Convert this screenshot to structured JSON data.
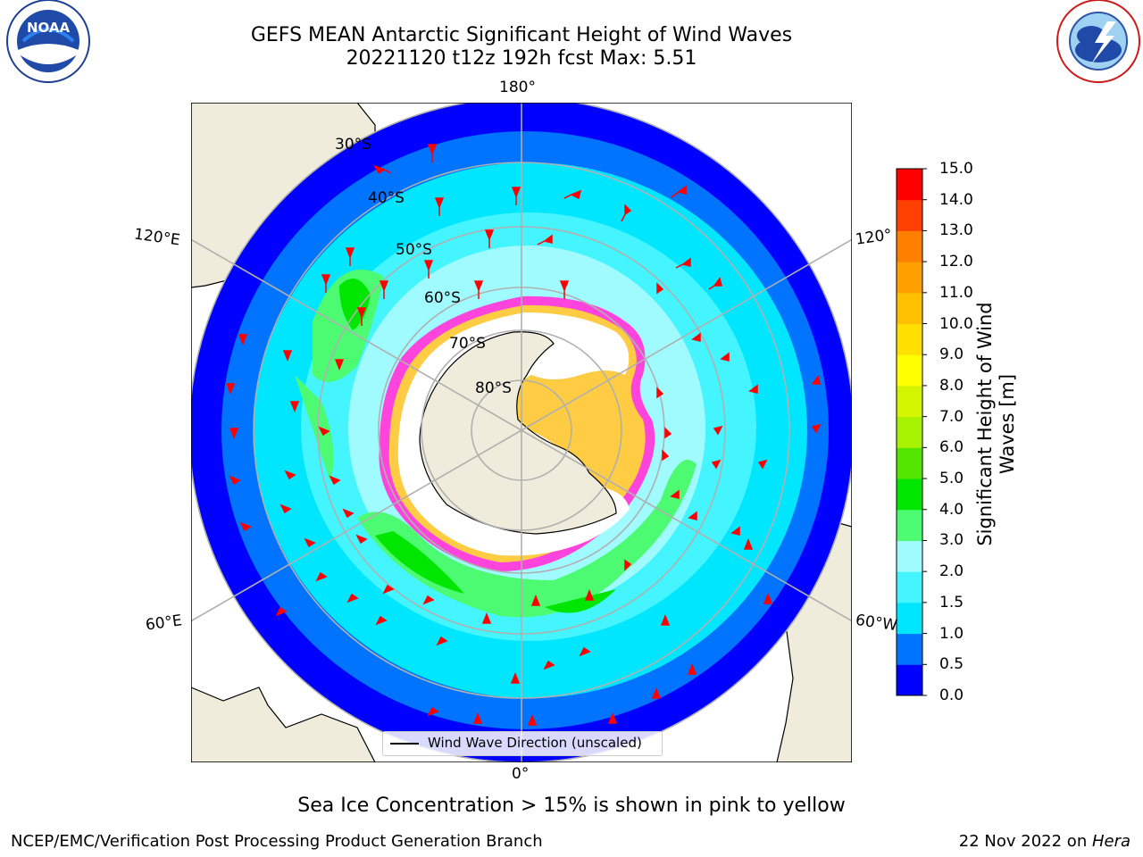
{
  "title_line1": "GEFS MEAN Antarctic Significant Height of Wind Waves",
  "title_line2": "20221120 t12z 192h fcst   Max: 5.51",
  "logos": {
    "left": {
      "name": "NOAA",
      "ring_text": "NATIONAL OCEANIC AND ATMOSPHERIC ADMINISTRATION",
      "bottom_text": "U.S. DEPARTMENT OF COMMERCE"
    },
    "right": {
      "name": "NATIONAL WEATHER SERVICE"
    }
  },
  "map": {
    "projection": "south polar stereographic",
    "lat_labels": [
      "30°S",
      "40°S",
      "50°S",
      "60°S",
      "70°S",
      "80°S"
    ],
    "lon_labels": {
      "top": "180°",
      "bottom": "0°",
      "upper_left": "120°E",
      "lower_left": "60°E",
      "upper_right": "120°",
      "lower_right": "60°W"
    },
    "legend_label": "Wind Wave Direction (unscaled)",
    "colors": {
      "land": "#efecdc",
      "sea_ice": "#ffffff",
      "ice_edge_pink": "#ff44dd",
      "ice_edge_yellow": "#ffcc44",
      "arrows": "#ff0000"
    }
  },
  "colorbar": {
    "label": "Significant Height of Wind Waves [m]",
    "ticks": [
      "0.0",
      "0.5",
      "1.0",
      "1.5",
      "2.0",
      "3.0",
      "4.0",
      "5.0",
      "6.0",
      "7.0",
      "8.0",
      "9.0",
      "10.0",
      "11.0",
      "12.0",
      "13.0",
      "14.0",
      "15.0"
    ],
    "colors": [
      "#0000ff",
      "#0073ff",
      "#00e6ff",
      "#44f4ff",
      "#9ffbff",
      "#4dfb72",
      "#00e600",
      "#55e600",
      "#a6f200",
      "#d4f500",
      "#ffff00",
      "#ffe000",
      "#ffc000",
      "#ffa000",
      "#ff8000",
      "#ff4000",
      "#ff0000"
    ]
  },
  "subtitle": "Sea Ice Concentration > 15% is shown in pink to yellow",
  "footer_left": "NCEP/EMC/Verification Post Processing Product Generation Branch",
  "footer_right_date": "22 Nov 2022 on ",
  "footer_right_host": "Hera"
}
